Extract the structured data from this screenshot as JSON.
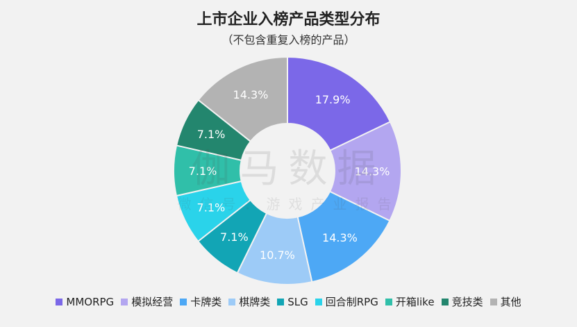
{
  "chart_data": {
    "type": "pie",
    "title": "上市企业入榜产品类型分布",
    "subtitle": "（不包含重复入榜的产品）",
    "categories": [
      "MMORPG",
      "模拟经营",
      "卡牌类",
      "棋牌类",
      "SLG",
      "回合制RPG",
      "开箱like",
      "竞技类",
      "其他"
    ],
    "values": [
      17.9,
      14.3,
      14.3,
      10.7,
      7.1,
      7.1,
      7.1,
      7.1,
      14.3
    ],
    "labels": [
      "17.9%",
      "14.3%",
      "14.3%",
      "10.7%",
      "7.1%",
      "7.1%",
      "7.1%",
      "7.1%",
      "14.3%"
    ],
    "colors": [
      "#7b68e8",
      "#b3a6f0",
      "#4da8f5",
      "#9dcbf7",
      "#12a5b5",
      "#2ad3ea",
      "#30bfa9",
      "#23866e",
      "#b3b3b3"
    ],
    "legend_position": "bottom"
  },
  "watermark": {
    "main": "伽马数据",
    "sub": "微信号：游戏产业报告"
  }
}
